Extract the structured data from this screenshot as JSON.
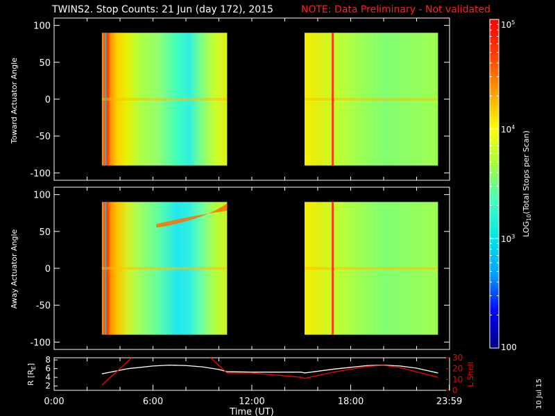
{
  "title": {
    "main": "TWINS2. Stop Counts: 21 Jun (day 172), 2015",
    "note": "NOTE: Data Preliminary - Not validated",
    "note_color": "#ff2020"
  },
  "footer_date": "10 Jul 15",
  "chart_data": [
    {
      "type": "heatmap",
      "ylabel": "Toward Actuator Angle",
      "ylim": [
        -110,
        110
      ],
      "yticks": [
        -100,
        -50,
        0,
        50,
        100
      ],
      "data_blocks_hours": [
        [
          2.9,
          10.5
        ],
        [
          15.2,
          23.3
        ]
      ]
    },
    {
      "type": "heatmap",
      "ylabel": "Away Actuator Angle",
      "ylim": [
        -110,
        110
      ],
      "yticks": [
        -100,
        -50,
        0,
        50,
        100
      ],
      "data_blocks_hours": [
        [
          2.9,
          10.5
        ],
        [
          15.2,
          23.3
        ]
      ]
    },
    {
      "type": "line",
      "ylabel": "R [R",
      "ylabel_sub": "E",
      "ylabel_close": "]",
      "ylabel_right": "L Shell",
      "ylim": [
        1,
        8.5
      ],
      "yticks": [
        2,
        4,
        6,
        8
      ],
      "ylim_right": [
        0,
        30
      ],
      "yticks_right": [
        0,
        10,
        20,
        30
      ],
      "series": [
        {
          "color": "#ffffff",
          "x": [
            2.9,
            4.5,
            6.0,
            7.0,
            8.0,
            9.0,
            10.0,
            10.5,
            12.0,
            15.0,
            15.2,
            17.0,
            19.0,
            20.0,
            21.0,
            22.0,
            23.3
          ],
          "y": [
            4.8,
            6.0,
            6.6,
            6.8,
            6.7,
            6.4,
            5.8,
            5.3,
            5.2,
            5.2,
            5.0,
            5.9,
            6.7,
            6.8,
            6.6,
            6.1,
            5.0
          ]
        },
        {
          "color": "#ff0000",
          "x": [
            2.9,
            4.0,
            4.7
          ],
          "y": [
            5,
            20,
            31
          ]
        },
        {
          "color": "#ff0000",
          "x": [
            9.5,
            10.5,
            12.0,
            15.0,
            15.2,
            17.0,
            19.0,
            20.0,
            21.0,
            22.0,
            23.3
          ],
          "y": [
            31,
            16,
            16,
            12,
            11,
            17,
            22,
            23,
            21,
            17,
            12
          ]
        }
      ]
    }
  ],
  "x_axis": {
    "label": "Time (UT)",
    "ticks": [
      0,
      6,
      12,
      18,
      23.983
    ],
    "tick_labels": [
      "0:00",
      "6:00",
      "12:00",
      "18:00",
      "23:59"
    ]
  },
  "colorbar": {
    "label": "LOG",
    "label_sub": "10",
    "label_rest": "(Total Stops per Scan)",
    "ticks": [
      {
        "value": 5,
        "base": "10",
        "exp": "5"
      },
      {
        "value": 4,
        "base": "10",
        "exp": "4"
      },
      {
        "value": 3,
        "base": "10",
        "exp": "3"
      },
      {
        "value": 2,
        "base": "100",
        "exp": ""
      }
    ],
    "range": [
      2,
      5
    ],
    "colors": [
      "#000080",
      "#0000ff",
      "#00a0ff",
      "#00e6e6",
      "#40ffc0",
      "#a0ff40",
      "#ffff00",
      "#ffa000",
      "#ff4000",
      "#ff0000"
    ]
  }
}
